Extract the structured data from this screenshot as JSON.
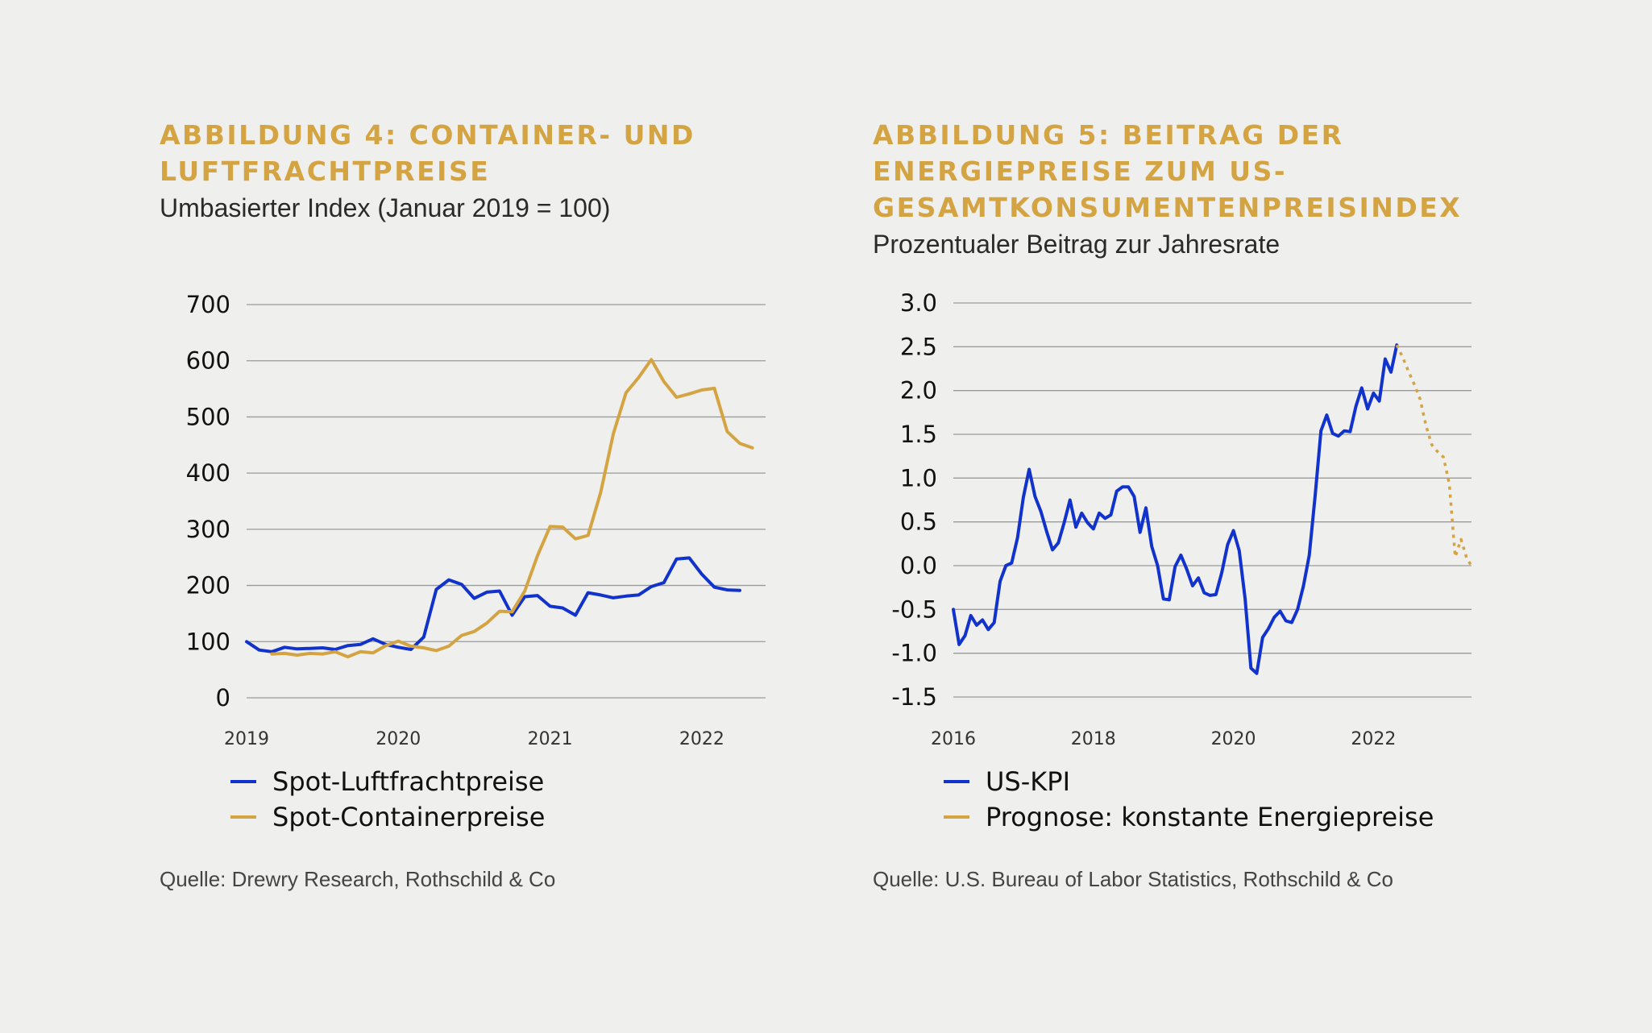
{
  "colors": {
    "background": "#efefed",
    "title": "#d4a443",
    "blue": "#1133cc",
    "gold": "#d4a443",
    "grid": "#9a9a9a"
  },
  "figures": [
    {
      "title": "ABBILDUNG 4: CONTAINER- UND LUFTFRACHTPREISE",
      "subtitle": "Umbasierter Index (Januar 2019 = 100)",
      "source": "Quelle: Drewry Research, Rothschild & Co",
      "legend": [
        {
          "label": "Spot-Luftfrachtpreise",
          "color": "#1133cc"
        },
        {
          "label": "Spot-Containerpreise",
          "color": "#d4a443"
        }
      ]
    },
    {
      "title": "ABBILDUNG 5: BEITRAG DER ENERGIEPREISE ZUM US-GESAMTKONSUMENTENPREISINDEX",
      "subtitle": "Prozentualer Beitrag zur Jahresrate",
      "source": "Quelle: U.S. Bureau of Labor Statistics, Rothschild & Co",
      "legend": [
        {
          "label": "US-KPI",
          "color": "#1133cc"
        },
        {
          "label": "Prognose: konstante Energiepreise",
          "color": "#d4a443"
        }
      ]
    }
  ],
  "chart_data": [
    {
      "type": "line",
      "title": "ABBILDUNG 4: CONTAINER- UND LUFTFRACHTPREISE",
      "ylim": [
        0,
        700
      ],
      "yticks": [
        "700",
        "600",
        "500",
        "400",
        "300",
        "200",
        "100",
        "0"
      ],
      "xticks": [
        "2019",
        "2020",
        "2021",
        "2022"
      ],
      "xlim": [
        2019.0,
        2022.42
      ],
      "grid": true,
      "legend_position": "bottom-left",
      "series": [
        {
          "name": "Spot-Luftfrachtpreise",
          "color": "#1133cc",
          "style": "solid",
          "x": [
            2019.0,
            2019.083,
            2019.167,
            2019.25,
            2019.333,
            2019.417,
            2019.5,
            2019.583,
            2019.667,
            2019.75,
            2019.833,
            2019.917,
            2020.0,
            2020.083,
            2020.167,
            2020.25,
            2020.333,
            2020.417,
            2020.5,
            2020.583,
            2020.667,
            2020.75,
            2020.833,
            2020.917,
            2021.0,
            2021.083,
            2021.167,
            2021.25,
            2021.333,
            2021.417,
            2021.5,
            2021.583,
            2021.667,
            2021.75,
            2021.833,
            2021.917,
            2022.0,
            2022.083,
            2022.167,
            2022.25
          ],
          "y": [
            100,
            85,
            82,
            90,
            87,
            88,
            89,
            86,
            93,
            95,
            105,
            95,
            90,
            86,
            108,
            193,
            210,
            202,
            177,
            188,
            190,
            147,
            180,
            182,
            163,
            160,
            147,
            187,
            183,
            178,
            181,
            183,
            198,
            205,
            247,
            249,
            220,
            197,
            192,
            191
          ]
        },
        {
          "name": "Spot-Containerpreise",
          "color": "#d4a443",
          "style": "solid",
          "x": [
            2019.167,
            2019.25,
            2019.333,
            2019.417,
            2019.5,
            2019.583,
            2019.667,
            2019.75,
            2019.833,
            2019.917,
            2020.0,
            2020.083,
            2020.167,
            2020.25,
            2020.333,
            2020.417,
            2020.5,
            2020.583,
            2020.667,
            2020.75,
            2020.833,
            2020.917,
            2021.0,
            2021.083,
            2021.167,
            2021.25,
            2021.333,
            2021.417,
            2021.5,
            2021.583,
            2021.667,
            2021.75,
            2021.833,
            2021.917,
            2022.0,
            2022.083,
            2022.167,
            2022.25,
            2022.333
          ],
          "y": [
            78,
            79,
            76,
            79,
            78,
            82,
            73,
            82,
            80,
            93,
            101,
            92,
            89,
            84,
            92,
            111,
            118,
            133,
            154,
            153,
            190,
            253,
            305,
            304,
            283,
            289,
            365,
            470,
            543,
            570,
            602,
            563,
            535,
            541,
            548,
            551,
            474,
            453,
            445
          ]
        }
      ]
    },
    {
      "type": "line",
      "title": "ABBILDUNG 5: BEITRAG DER ENERGIEPREISE ZUM US-GESAMTKONSUMENTENPREISINDEX",
      "ylim": [
        -1.5,
        3.0
      ],
      "yticks": [
        "3.0",
        "2.5",
        "2.0",
        "1.5",
        "1.0",
        "0.5",
        "0.0",
        "-0.5",
        "-1.0",
        "-1.5"
      ],
      "xticks": [
        "2016",
        "2018",
        "2020",
        "2022"
      ],
      "xlim": [
        2016.0,
        2023.4
      ],
      "grid": true,
      "legend_position": "bottom-left",
      "series": [
        {
          "name": "US-KPI",
          "color": "#1133cc",
          "style": "solid",
          "x": [
            2016.0,
            2016.083,
            2016.167,
            2016.25,
            2016.333,
            2016.417,
            2016.5,
            2016.583,
            2016.667,
            2016.75,
            2016.833,
            2016.917,
            2017.0,
            2017.083,
            2017.167,
            2017.25,
            2017.333,
            2017.417,
            2017.5,
            2017.583,
            2017.667,
            2017.75,
            2017.833,
            2017.917,
            2018.0,
            2018.083,
            2018.167,
            2018.25,
            2018.333,
            2018.417,
            2018.5,
            2018.583,
            2018.667,
            2018.75,
            2018.833,
            2018.917,
            2019.0,
            2019.083,
            2019.167,
            2019.25,
            2019.333,
            2019.417,
            2019.5,
            2019.583,
            2019.667,
            2019.75,
            2019.833,
            2019.917,
            2020.0,
            2020.083,
            2020.167,
            2020.25,
            2020.333,
            2020.417,
            2020.5,
            2020.583,
            2020.667,
            2020.75,
            2020.833,
            2020.917,
            2021.0,
            2021.083,
            2021.167,
            2021.25,
            2021.333,
            2021.417,
            2021.5,
            2021.583,
            2021.667,
            2021.75,
            2021.833,
            2021.917,
            2022.0,
            2022.083,
            2022.167,
            2022.25,
            2022.333
          ],
          "y": [
            -0.5,
            -0.9,
            -0.8,
            -0.57,
            -0.68,
            -0.62,
            -0.73,
            -0.65,
            -0.18,
            0.0,
            0.03,
            0.32,
            0.78,
            1.1,
            0.79,
            0.62,
            0.39,
            0.18,
            0.26,
            0.49,
            0.75,
            0.44,
            0.6,
            0.49,
            0.42,
            0.6,
            0.54,
            0.58,
            0.85,
            0.9,
            0.9,
            0.79,
            0.38,
            0.66,
            0.22,
            0.0,
            -0.38,
            -0.39,
            -0.01,
            0.12,
            -0.04,
            -0.23,
            -0.14,
            -0.31,
            -0.34,
            -0.33,
            -0.08,
            0.24,
            0.4,
            0.17,
            -0.38,
            -1.17,
            -1.23,
            -0.82,
            -0.72,
            -0.59,
            -0.52,
            -0.63,
            -0.65,
            -0.5,
            -0.23,
            0.12,
            0.8,
            1.54,
            1.72,
            1.51,
            1.48,
            1.54,
            1.53,
            1.82,
            2.03,
            1.79,
            1.97,
            1.88,
            2.36,
            2.21,
            2.52
          ]
        },
        {
          "name": "Prognose: konstante Energiepreise",
          "color": "#d4a443",
          "style": "dotted",
          "x": [
            2022.333,
            2022.417,
            2022.5,
            2022.583,
            2022.667,
            2022.75,
            2022.833,
            2022.917,
            2023.0,
            2023.083,
            2023.167,
            2023.25,
            2023.333,
            2023.4
          ],
          "y": [
            2.52,
            2.38,
            2.22,
            2.07,
            1.9,
            1.6,
            1.38,
            1.3,
            1.24,
            0.93,
            0.1,
            0.3,
            0.08,
            0.0
          ]
        }
      ]
    }
  ]
}
